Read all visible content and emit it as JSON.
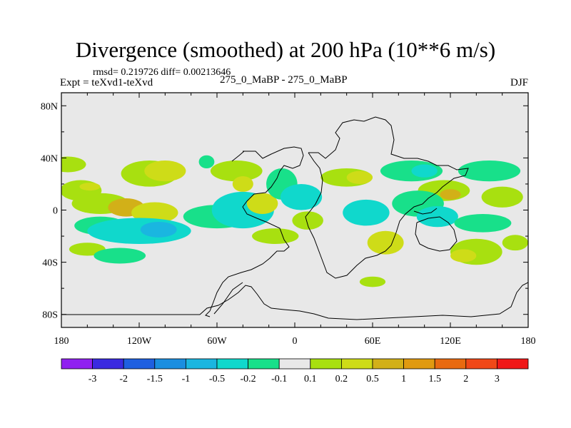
{
  "chart_data": {
    "type": "heatmap",
    "title": "Divergence (smoothed) at 200 hPa (10**6 m/s)",
    "stats": "rmsd= 0.219726  diff= 0.00213646",
    "left_label": "Expt = teXvd1-teXvd",
    "center_label": "275_0_MaBP - 275_0_MaBP",
    "right_label": "DJF",
    "x_axis": {
      "range": [
        -180,
        180
      ],
      "ticks": [
        -180,
        -120,
        -60,
        0,
        60,
        120,
        180
      ],
      "tick_labels": [
        "180",
        "120W",
        "60W",
        "0",
        "60E",
        "120E",
        "180"
      ]
    },
    "y_axis": {
      "range": [
        -90,
        90
      ],
      "ticks": [
        80,
        40,
        0,
        -40,
        -80
      ],
      "tick_labels": [
        "80N",
        "40N",
        "0",
        "40S",
        "80S"
      ]
    },
    "colorbar": {
      "labels": [
        "-3",
        "-2",
        "-1.5",
        "-1",
        "-0.5",
        "-0.2",
        "-0.1",
        "0.1",
        "0.2",
        "0.5",
        "1",
        "1.5",
        "2",
        "3"
      ],
      "colors": [
        "#9020f0",
        "#3a2ae0",
        "#1f5fe0",
        "#1a8ee0",
        "#1ab6e0",
        "#10d8cc",
        "#18e08a",
        "#e8e8e8",
        "#a8e010",
        "#cedc18",
        "#d2b018",
        "#e09a10",
        "#e86a10",
        "#f04818",
        "#f01818"
      ]
    },
    "field_blobs": [
      {
        "lon": -175,
        "lat": 35,
        "rx": 14,
        "ry": 6,
        "level": "0.1"
      },
      {
        "lon": -165,
        "lat": 15,
        "rx": 16,
        "ry": 8,
        "level": "0.1"
      },
      {
        "lon": -158,
        "lat": 18,
        "rx": 8,
        "ry": 3,
        "level": "0.2"
      },
      {
        "lon": -112,
        "lat": 28,
        "rx": 22,
        "ry": 10,
        "level": "0.1"
      },
      {
        "lon": -100,
        "lat": 30,
        "rx": 16,
        "ry": 8,
        "level": "0.2"
      },
      {
        "lon": -150,
        "lat": 5,
        "rx": 22,
        "ry": 8,
        "level": "0.1"
      },
      {
        "lon": -130,
        "lat": 2,
        "rx": 14,
        "ry": 7,
        "level": "0.5"
      },
      {
        "lon": -108,
        "lat": -2,
        "rx": 18,
        "ry": 8,
        "level": "0.2"
      },
      {
        "lon": -150,
        "lat": -12,
        "rx": 20,
        "ry": 7,
        "level": "-0.1"
      },
      {
        "lon": -120,
        "lat": -16,
        "rx": 40,
        "ry": 10,
        "level": "-0.2"
      },
      {
        "lon": -105,
        "lat": -15,
        "rx": 14,
        "ry": 6,
        "level": "-0.5"
      },
      {
        "lon": -160,
        "lat": -30,
        "rx": 14,
        "ry": 5,
        "level": "0.1"
      },
      {
        "lon": -135,
        "lat": -35,
        "rx": 20,
        "ry": 6,
        "level": "-0.1"
      },
      {
        "lon": -68,
        "lat": 37,
        "rx": 6,
        "ry": 5,
        "level": "-0.1"
      },
      {
        "lon": -45,
        "lat": 30,
        "rx": 20,
        "ry": 8,
        "level": "0.1"
      },
      {
        "lon": -40,
        "lat": 20,
        "rx": 8,
        "ry": 6,
        "level": "0.2"
      },
      {
        "lon": -60,
        "lat": -5,
        "rx": 26,
        "ry": 9,
        "level": "-0.1"
      },
      {
        "lon": -40,
        "lat": 0,
        "rx": 24,
        "ry": 14,
        "level": "-0.2"
      },
      {
        "lon": -25,
        "lat": 5,
        "rx": 12,
        "ry": 8,
        "level": "0.2"
      },
      {
        "lon": -10,
        "lat": 20,
        "rx": 12,
        "ry": 12,
        "level": "-0.1"
      },
      {
        "lon": 5,
        "lat": 10,
        "rx": 16,
        "ry": 10,
        "level": "-0.2"
      },
      {
        "lon": -15,
        "lat": -20,
        "rx": 18,
        "ry": 6,
        "level": "0.1"
      },
      {
        "lon": 10,
        "lat": -8,
        "rx": 12,
        "ry": 7,
        "level": "0.1"
      },
      {
        "lon": 40,
        "lat": 25,
        "rx": 20,
        "ry": 7,
        "level": "0.1"
      },
      {
        "lon": 50,
        "lat": 25,
        "rx": 10,
        "ry": 5,
        "level": "0.2"
      },
      {
        "lon": 55,
        "lat": -2,
        "rx": 18,
        "ry": 10,
        "level": "-0.2"
      },
      {
        "lon": 70,
        "lat": -25,
        "rx": 14,
        "ry": 9,
        "level": "0.2"
      },
      {
        "lon": 90,
        "lat": 30,
        "rx": 24,
        "ry": 8,
        "level": "-0.1"
      },
      {
        "lon": 100,
        "lat": 30,
        "rx": 10,
        "ry": 5,
        "level": "-0.2"
      },
      {
        "lon": 115,
        "lat": 15,
        "rx": 20,
        "ry": 8,
        "level": "0.1"
      },
      {
        "lon": 120,
        "lat": 12,
        "rx": 8,
        "ry": 4,
        "level": "0.5"
      },
      {
        "lon": 95,
        "lat": 5,
        "rx": 20,
        "ry": 10,
        "level": "-0.1"
      },
      {
        "lon": 110,
        "lat": -5,
        "rx": 16,
        "ry": 8,
        "level": "-0.2"
      },
      {
        "lon": 150,
        "lat": 30,
        "rx": 24,
        "ry": 8,
        "level": "-0.1"
      },
      {
        "lon": 160,
        "lat": 10,
        "rx": 16,
        "ry": 8,
        "level": "0.1"
      },
      {
        "lon": 145,
        "lat": -10,
        "rx": 22,
        "ry": 7,
        "level": "-0.1"
      },
      {
        "lon": 140,
        "lat": -32,
        "rx": 20,
        "ry": 10,
        "level": "0.1"
      },
      {
        "lon": 130,
        "lat": -35,
        "rx": 10,
        "ry": 5,
        "level": "0.2"
      },
      {
        "lon": 170,
        "lat": -25,
        "rx": 10,
        "ry": 6,
        "level": "0.1"
      },
      {
        "lon": 60,
        "lat": -55,
        "rx": 10,
        "ry": 4,
        "level": "0.1"
      }
    ]
  }
}
